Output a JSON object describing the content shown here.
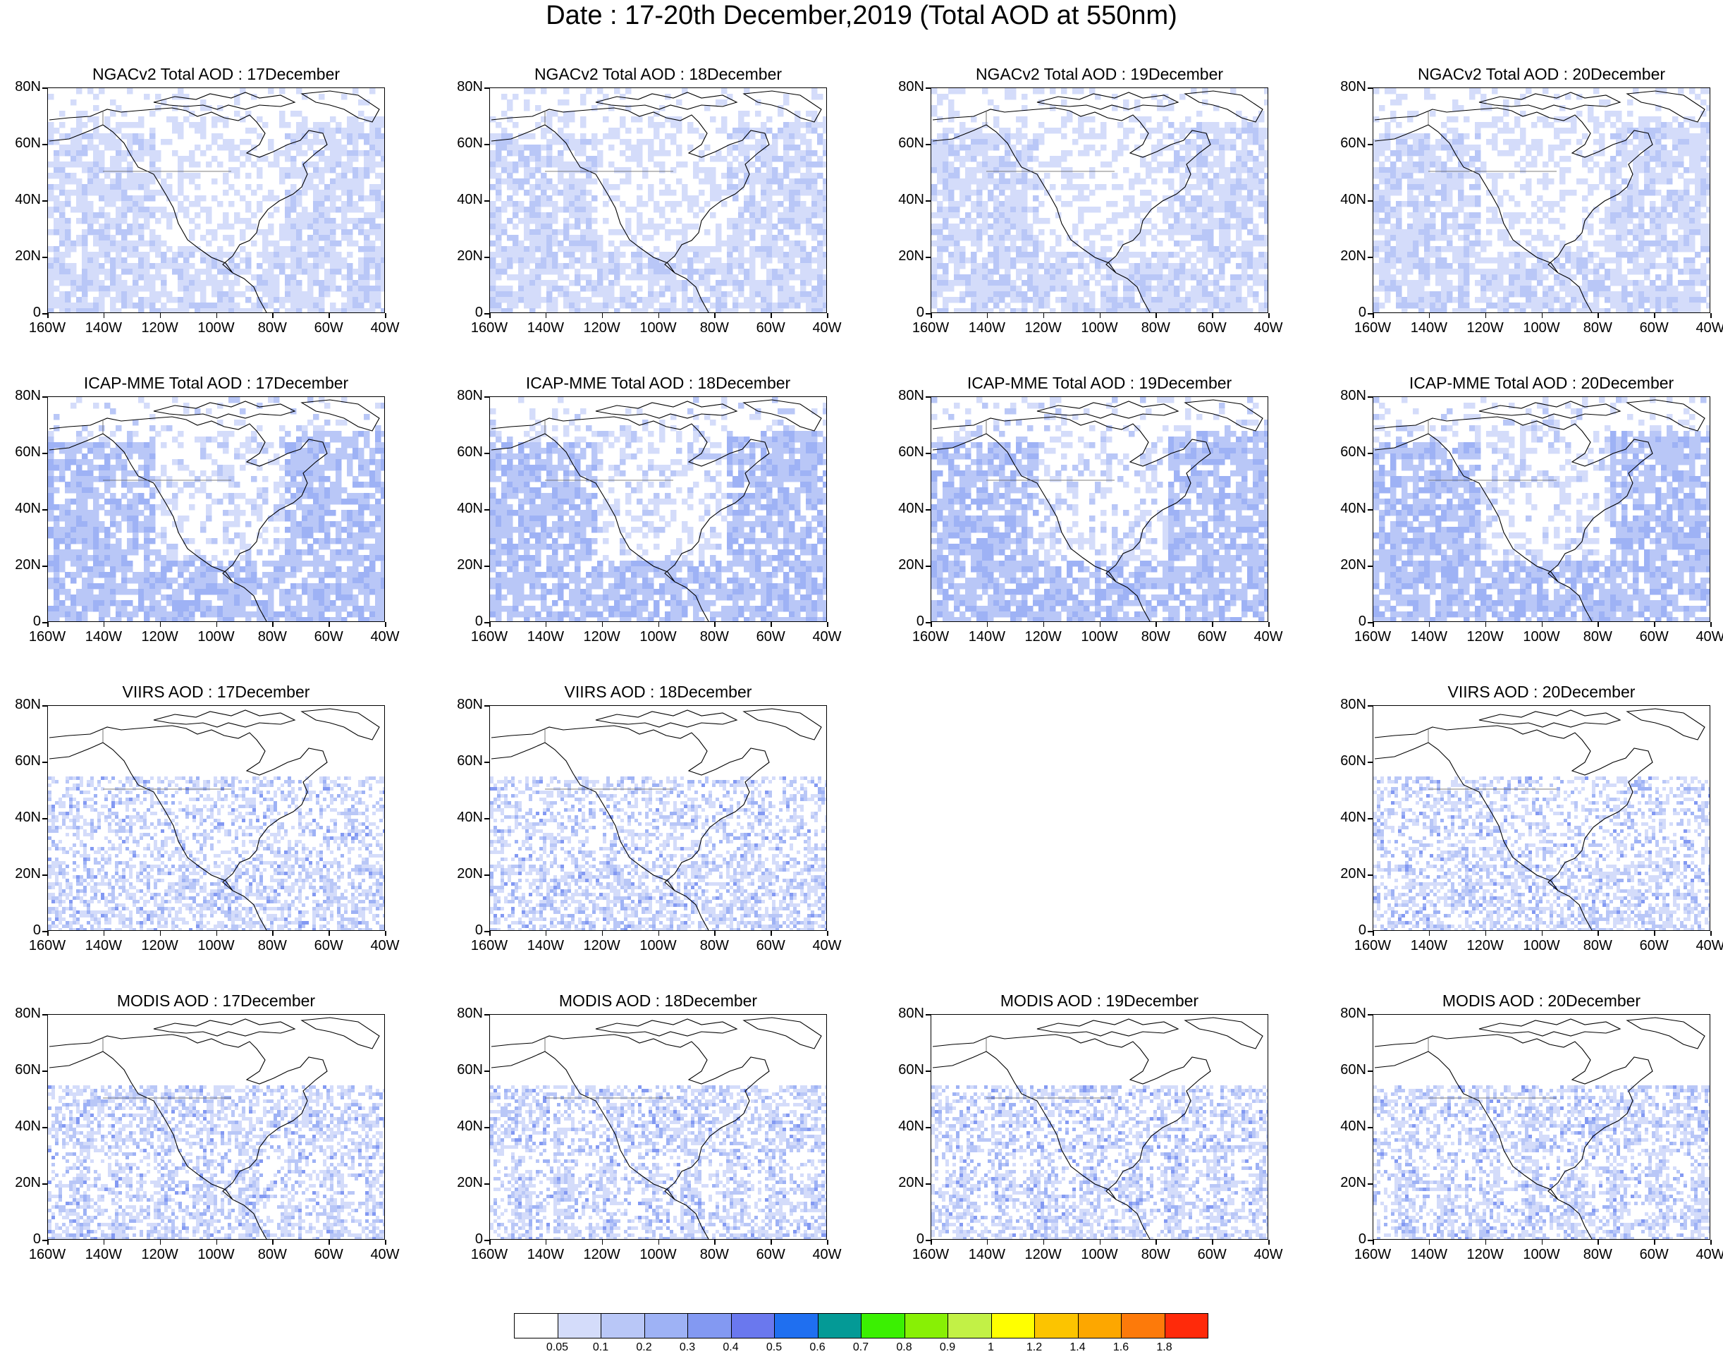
{
  "title": "Date : 17-20th December,2019 (Total AOD at 550nm)",
  "axes": {
    "lat_labels": [
      "80N",
      "60N",
      "40N",
      "20N",
      "0"
    ],
    "lon_labels": [
      "160W",
      "140W",
      "120W",
      "100W",
      "80W",
      "60W",
      "40W"
    ]
  },
  "panels": [
    {
      "title": "NGACv2 Total AOD : 17December",
      "row": 0,
      "col": 0,
      "pattern": "ngac"
    },
    {
      "title": "NGACv2 Total AOD : 18December",
      "row": 0,
      "col": 1,
      "pattern": "ngac"
    },
    {
      "title": "NGACv2 Total AOD : 19December",
      "row": 0,
      "col": 2,
      "pattern": "ngac"
    },
    {
      "title": "NGACv2 Total AOD : 20December",
      "row": 0,
      "col": 3,
      "pattern": "ngac"
    },
    {
      "title": "ICAP-MME Total AOD : 17December",
      "row": 1,
      "col": 0,
      "pattern": "icap"
    },
    {
      "title": "ICAP-MME Total AOD : 18December",
      "row": 1,
      "col": 1,
      "pattern": "icap"
    },
    {
      "title": "ICAP-MME Total AOD : 19December",
      "row": 1,
      "col": 2,
      "pattern": "icap"
    },
    {
      "title": "ICAP-MME Total AOD : 20December",
      "row": 1,
      "col": 3,
      "pattern": "icap"
    },
    {
      "title": "VIIRS AOD : 17December",
      "row": 2,
      "col": 0,
      "pattern": "viirs"
    },
    {
      "title": "VIIRS AOD : 18December",
      "row": 2,
      "col": 1,
      "pattern": "viirs"
    },
    {
      "title": "VIIRS AOD : 20December",
      "row": 2,
      "col": 3,
      "pattern": "viirs"
    },
    {
      "title": "MODIS AOD : 17December",
      "row": 3,
      "col": 0,
      "pattern": "modis"
    },
    {
      "title": "MODIS AOD : 18December",
      "row": 3,
      "col": 1,
      "pattern": "modis"
    },
    {
      "title": "MODIS AOD : 19December",
      "row": 3,
      "col": 2,
      "pattern": "modis"
    },
    {
      "title": "MODIS AOD : 20December",
      "row": 3,
      "col": 3,
      "pattern": "modis"
    }
  ],
  "colorbar": {
    "labels": [
      "0.05",
      "0.1",
      "0.2",
      "0.3",
      "0.4",
      "0.5",
      "0.6",
      "0.7",
      "0.8",
      "0.9",
      "1",
      "1.2",
      "1.4",
      "1.6",
      "1.8"
    ],
    "colors": [
      "#ffffff",
      "#d4dcfa",
      "#b9c7f7",
      "#9eb2f5",
      "#8399f2",
      "#6a78ee",
      "#1f6ff0",
      "#049a96",
      "#3bf002",
      "#88f005",
      "#c2f146",
      "#ffff00",
      "#fcc400",
      "#fda700",
      "#fd7a0a",
      "#ff2a0a"
    ]
  }
}
